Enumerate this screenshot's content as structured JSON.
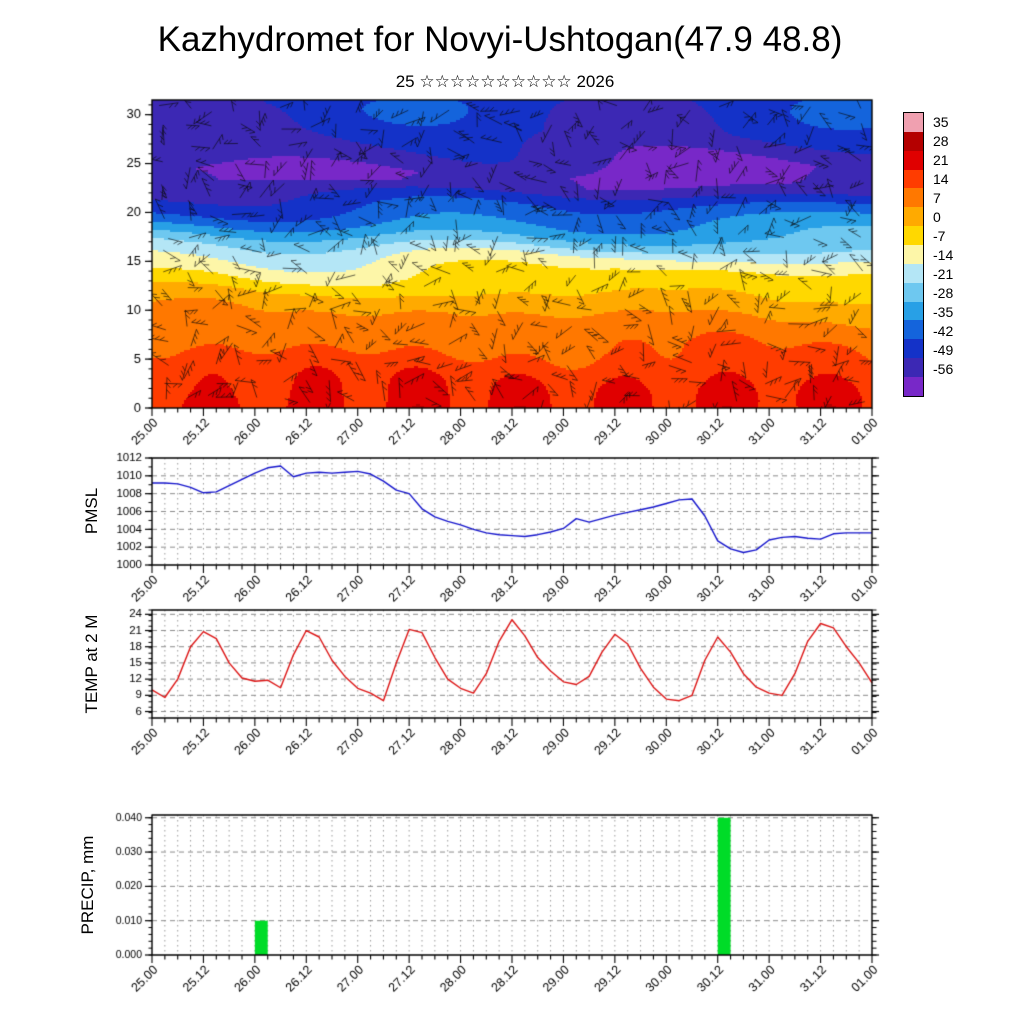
{
  "title": "Kazhydromet for Novyi-Ushtogan(47.9 48.8)",
  "subtitle": "25 ☆☆☆☆☆☆☆☆☆☆ 2026",
  "x_axis": {
    "tick_labels": [
      "25.00",
      "25.12",
      "26.00",
      "26.12",
      "27.00",
      "27.12",
      "28.00",
      "28.12",
      "29.00",
      "29.12",
      "30.00",
      "30.12",
      "31.00",
      "31.12",
      "01.00"
    ],
    "step_hours": 3,
    "label_every_hours": 12,
    "total_hours": 168
  },
  "chart_data": [
    {
      "id": "cross_section",
      "type": "heatmap",
      "overlay": "wind-barbs",
      "y_ticks": [
        0,
        5,
        10,
        15,
        20,
        25,
        30
      ],
      "y_range": [
        0,
        31.5
      ],
      "colorbar_labels": [
        35,
        28,
        21,
        14,
        7,
        0,
        -7,
        -14,
        -21,
        -28,
        -35,
        -42,
        -49,
        -56
      ],
      "colorbar_colors": [
        "#f0a0b0",
        "#b40000",
        "#e00000",
        "#ff3c00",
        "#ff7800",
        "#ffaa00",
        "#ffd800",
        "#fdf6a8",
        "#b4e6f6",
        "#6ec8f0",
        "#28a0e6",
        "#1464dc",
        "#1432c8",
        "#3c28b4",
        "#7828c8"
      ],
      "base_profile_levels": [
        0,
        2,
        4,
        6,
        8,
        10,
        12,
        14,
        15,
        16,
        18,
        20,
        21.5,
        23,
        24.5,
        26,
        28,
        31.5
      ],
      "base_profile_temps": [
        23,
        21,
        18,
        14,
        10,
        6,
        0,
        -8,
        -13,
        -19,
        -30,
        -40,
        -48,
        -56,
        -57,
        -52,
        -48,
        -46
      ]
    },
    {
      "id": "pmsl",
      "type": "line",
      "label": "PMSL",
      "line_color": "#1414cc",
      "y_ticks": [
        1000,
        1002,
        1004,
        1006,
        1008,
        1010,
        1012
      ],
      "y_range": [
        1000,
        1012
      ],
      "y_minor": 1,
      "y_font": 11.5,
      "values": [
        1009.2,
        1009.2,
        1009.1,
        1008.7,
        1008.1,
        1008.2,
        1008.9,
        1009.6,
        1010.3,
        1010.9,
        1011.1,
        1009.9,
        1010.3,
        1010.4,
        1010.3,
        1010.4,
        1010.5,
        1010.2,
        1009.4,
        1008.4,
        1008.0,
        1006.3,
        1005.4,
        1004.9,
        1004.5,
        1004.0,
        1003.6,
        1003.4,
        1003.3,
        1003.2,
        1003.4,
        1003.7,
        1004.1,
        1005.2,
        1004.8,
        1005.2,
        1005.6,
        1005.9,
        1006.2,
        1006.5,
        1006.9,
        1007.3,
        1007.4,
        1005.5,
        1002.7,
        1001.8,
        1001.4,
        1001.7,
        1002.8,
        1003.1,
        1003.2,
        1003.0,
        1002.9,
        1003.5,
        1003.6,
        1003.6,
        1003.6
      ]
    },
    {
      "id": "temp2m",
      "type": "line",
      "label": "TEMP at 2 M",
      "line_color": "#dc1414",
      "y_ticks": [
        6,
        9,
        12,
        15,
        18,
        21,
        24
      ],
      "y_range": [
        4.8,
        24.8
      ],
      "y_minor": 1,
      "y_font": 11.5,
      "values": [
        10.0,
        8.6,
        12.0,
        18.0,
        20.8,
        19.5,
        15.0,
        12.2,
        11.6,
        11.8,
        10.4,
        16.5,
        21.0,
        19.8,
        15.5,
        12.5,
        10.3,
        9.4,
        8.0,
        15.0,
        21.2,
        20.6,
        16.0,
        12.0,
        10.3,
        9.4,
        13.0,
        19.0,
        23.0,
        20.0,
        16.0,
        13.5,
        11.5,
        11.0,
        12.5,
        17.0,
        20.3,
        18.5,
        14.0,
        10.5,
        8.3,
        8.0,
        9.0,
        15.5,
        19.8,
        17.0,
        13.0,
        10.5,
        9.4,
        9.0,
        13.0,
        19.0,
        22.3,
        21.5,
        18.0,
        15.0,
        11.3
      ]
    },
    {
      "id": "precip",
      "type": "bar",
      "label": "PRECIP, mm",
      "bar_color": "#00dc28",
      "y_ticks": [
        "0.000",
        "0.010",
        "0.020",
        "0.030",
        "0.040"
      ],
      "y_range": [
        0,
        0.0408
      ],
      "y_minor": 0.002,
      "y_font": 10.5,
      "bars": [
        {
          "start_hour": 24,
          "end_hour": 27,
          "value": 0.01
        },
        {
          "start_hour": 132,
          "end_hour": 135,
          "value": 0.04
        }
      ]
    }
  ]
}
